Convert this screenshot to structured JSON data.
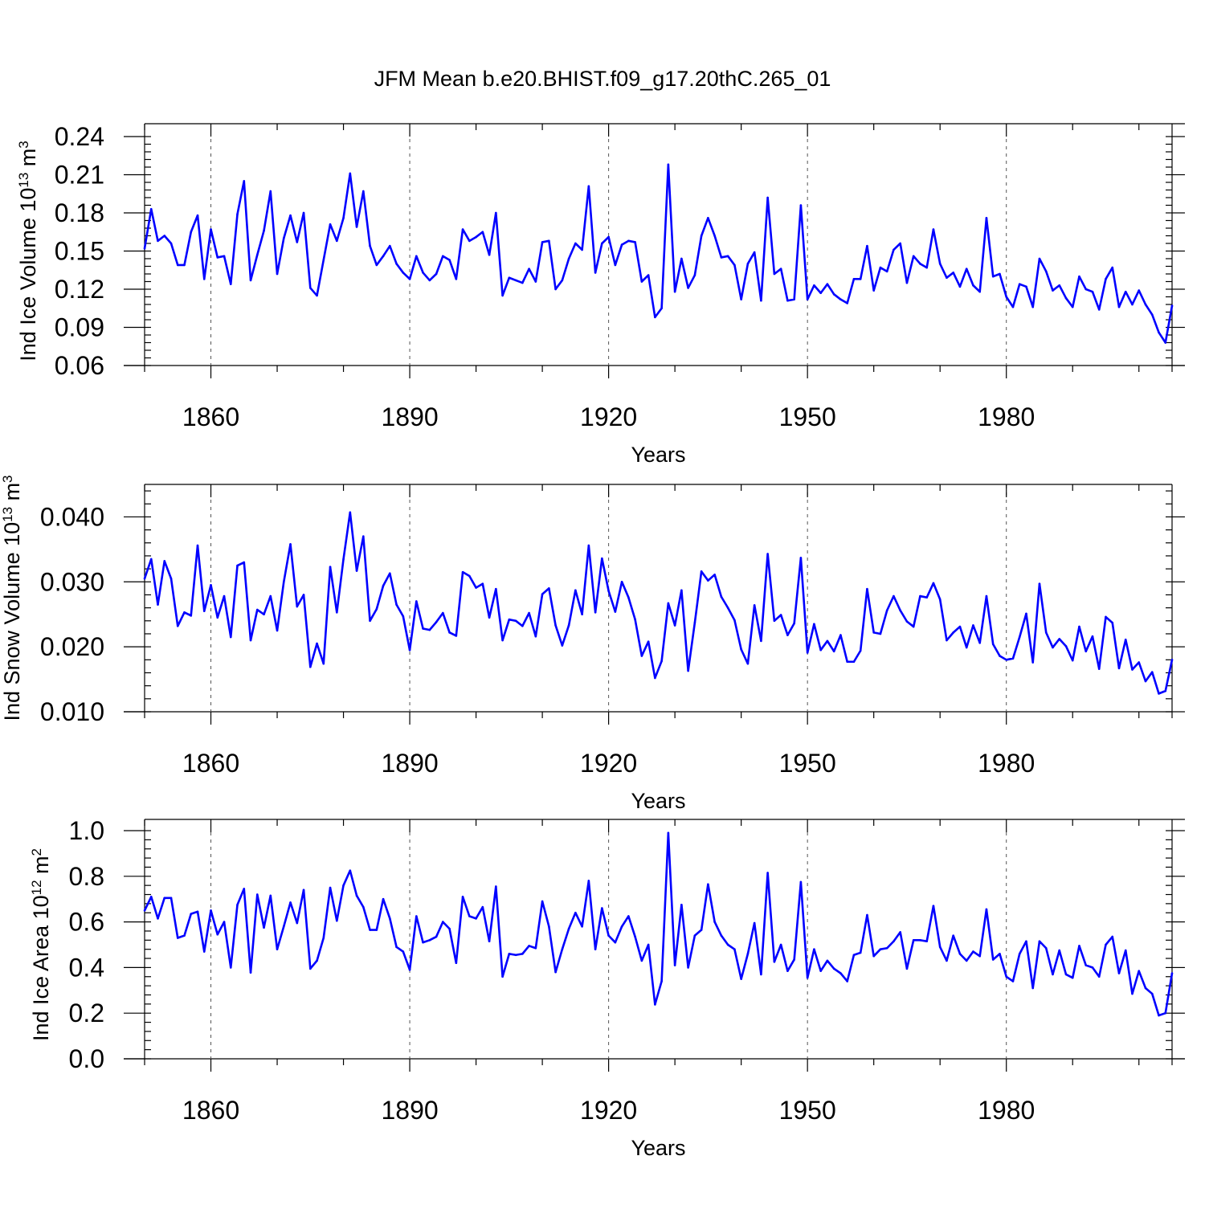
{
  "title": "JFM Mean b.e20.BHIST.f09_g17.20thC.265_01",
  "line_color": "#0000ff",
  "chart_data": [
    {
      "type": "line",
      "name": "ice-volume",
      "ylabel_prefix": "Ind Ice Volume 10",
      "ylabel_exp": "13",
      "ylabel_unit": " m",
      "ylabel_unit_exp": "3",
      "xlabel": "Years",
      "xlim": [
        1850,
        2005
      ],
      "ylim": [
        0.06,
        0.24
      ],
      "x_ticks": [
        1860,
        1890,
        1920,
        1950,
        1980
      ],
      "x_tick_labels": [
        "1860",
        "1890",
        "1920",
        "1950",
        "1980"
      ],
      "y_ticks": [
        0.06,
        0.09,
        0.12,
        0.15,
        0.18,
        0.21,
        0.24
      ],
      "y_tick_labels": [
        "0.06",
        "0.09",
        "0.12",
        "0.15",
        "0.18",
        "0.21",
        "0.24"
      ],
      "y_minor_step": 0.006,
      "x": [
        1850,
        1851,
        1852,
        1853,
        1854,
        1855,
        1856,
        1857,
        1858,
        1859,
        1860,
        1861,
        1862,
        1863,
        1864,
        1865,
        1866,
        1867,
        1868,
        1869,
        1870,
        1871,
        1872,
        1873,
        1874,
        1875,
        1876,
        1877,
        1878,
        1879,
        1880,
        1881,
        1882,
        1883,
        1884,
        1885,
        1886,
        1887,
        1888,
        1889,
        1890,
        1891,
        1892,
        1893,
        1894,
        1895,
        1896,
        1897,
        1898,
        1899,
        1900,
        1901,
        1902,
        1903,
        1904,
        1905,
        1906,
        1907,
        1908,
        1909,
        1910,
        1911,
        1912,
        1913,
        1914,
        1915,
        1916,
        1917,
        1918,
        1919,
        1920,
        1921,
        1922,
        1923,
        1924,
        1925,
        1926,
        1927,
        1928,
        1929,
        1930,
        1931,
        1932,
        1933,
        1934,
        1935,
        1936,
        1937,
        1938,
        1939,
        1940,
        1941,
        1942,
        1943,
        1944,
        1945,
        1946,
        1947,
        1948,
        1949,
        1950,
        1951,
        1952,
        1953,
        1954,
        1955,
        1956,
        1957,
        1958,
        1959,
        1960,
        1961,
        1962,
        1963,
        1964,
        1965,
        1966,
        1967,
        1968,
        1969,
        1970,
        1971,
        1972,
        1973,
        1974,
        1975,
        1976,
        1977,
        1978,
        1979,
        1980,
        1981,
        1982,
        1983,
        1984,
        1985,
        1986,
        1987,
        1988,
        1989,
        1990,
        1991,
        1992,
        1993,
        1994,
        1995,
        1996,
        1997,
        1998,
        1999,
        2000,
        2001,
        2002,
        2003,
        2004,
        2005
      ],
      "values": [
        0.152,
        0.183,
        0.158,
        0.162,
        0.156,
        0.139,
        0.139,
        0.165,
        0.178,
        0.128,
        0.167,
        0.145,
        0.146,
        0.124,
        0.179,
        0.205,
        0.127,
        0.147,
        0.166,
        0.197,
        0.132,
        0.16,
        0.178,
        0.157,
        0.18,
        0.121,
        0.115,
        0.143,
        0.171,
        0.158,
        0.176,
        0.211,
        0.169,
        0.197,
        0.154,
        0.139,
        0.146,
        0.154,
        0.14,
        0.133,
        0.128,
        0.146,
        0.133,
        0.127,
        0.132,
        0.146,
        0.143,
        0.128,
        0.167,
        0.158,
        0.161,
        0.165,
        0.147,
        0.18,
        0.115,
        0.129,
        0.127,
        0.125,
        0.136,
        0.126,
        0.157,
        0.158,
        0.12,
        0.127,
        0.144,
        0.156,
        0.151,
        0.201,
        0.133,
        0.156,
        0.161,
        0.139,
        0.155,
        0.158,
        0.157,
        0.126,
        0.131,
        0.098,
        0.105,
        0.218,
        0.118,
        0.144,
        0.121,
        0.131,
        0.162,
        0.176,
        0.162,
        0.145,
        0.146,
        0.139,
        0.112,
        0.14,
        0.149,
        0.111,
        0.192,
        0.132,
        0.136,
        0.111,
        0.112,
        0.186,
        0.112,
        0.123,
        0.117,
        0.124,
        0.116,
        0.112,
        0.109,
        0.128,
        0.128,
        0.154,
        0.119,
        0.137,
        0.134,
        0.151,
        0.156,
        0.125,
        0.146,
        0.14,
        0.137,
        0.167,
        0.14,
        0.129,
        0.133,
        0.122,
        0.136,
        0.123,
        0.118,
        0.176,
        0.13,
        0.132,
        0.114,
        0.106,
        0.124,
        0.122,
        0.106,
        0.144,
        0.134,
        0.119,
        0.123,
        0.113,
        0.106,
        0.13,
        0.12,
        0.118,
        0.104,
        0.128,
        0.137,
        0.106,
        0.118,
        0.108,
        0.119,
        0.108,
        0.1,
        0.086,
        0.078,
        0.107
      ]
    },
    {
      "type": "line",
      "name": "snow-volume",
      "ylabel_prefix": "Ind Snow Volume 10",
      "ylabel_exp": "13",
      "ylabel_unit": " m",
      "ylabel_unit_exp": "3",
      "xlabel": "Years",
      "xlim": [
        1850,
        2005
      ],
      "ylim": [
        0.01,
        0.045
      ],
      "x_ticks": [
        1860,
        1890,
        1920,
        1950,
        1980
      ],
      "x_tick_labels": [
        "1860",
        "1890",
        "1920",
        "1950",
        "1980"
      ],
      "y_ticks": [
        0.01,
        0.02,
        0.03,
        0.04
      ],
      "y_tick_labels": [
        "0.010",
        "0.020",
        "0.030",
        "0.040"
      ],
      "y_minor_step": 0.002,
      "x": [
        1850,
        1851,
        1852,
        1853,
        1854,
        1855,
        1856,
        1857,
        1858,
        1859,
        1860,
        1861,
        1862,
        1863,
        1864,
        1865,
        1866,
        1867,
        1868,
        1869,
        1870,
        1871,
        1872,
        1873,
        1874,
        1875,
        1876,
        1877,
        1878,
        1879,
        1880,
        1881,
        1882,
        1883,
        1884,
        1885,
        1886,
        1887,
        1888,
        1889,
        1890,
        1891,
        1892,
        1893,
        1894,
        1895,
        1896,
        1897,
        1898,
        1899,
        1900,
        1901,
        1902,
        1903,
        1904,
        1905,
        1906,
        1907,
        1908,
        1909,
        1910,
        1911,
        1912,
        1913,
        1914,
        1915,
        1916,
        1917,
        1918,
        1919,
        1920,
        1921,
        1922,
        1923,
        1924,
        1925,
        1926,
        1927,
        1928,
        1929,
        1930,
        1931,
        1932,
        1933,
        1934,
        1935,
        1936,
        1937,
        1938,
        1939,
        1940,
        1941,
        1942,
        1943,
        1944,
        1945,
        1946,
        1947,
        1948,
        1949,
        1950,
        1951,
        1952,
        1953,
        1954,
        1955,
        1956,
        1957,
        1958,
        1959,
        1960,
        1961,
        1962,
        1963,
        1964,
        1965,
        1966,
        1967,
        1968,
        1969,
        1970,
        1971,
        1972,
        1973,
        1974,
        1975,
        1976,
        1977,
        1978,
        1979,
        1980,
        1981,
        1982,
        1983,
        1984,
        1985,
        1986,
        1987,
        1988,
        1989,
        1990,
        1991,
        1992,
        1993,
        1994,
        1995,
        1996,
        1997,
        1998,
        1999,
        2000,
        2001,
        2002,
        2003,
        2004,
        2005
      ],
      "values": [
        0.0305,
        0.0335,
        0.0265,
        0.0332,
        0.0305,
        0.0232,
        0.0253,
        0.0248,
        0.0356,
        0.0255,
        0.0295,
        0.0245,
        0.0278,
        0.0215,
        0.0325,
        0.033,
        0.021,
        0.0257,
        0.025,
        0.0278,
        0.0225,
        0.03,
        0.0358,
        0.0262,
        0.028,
        0.0169,
        0.0205,
        0.0174,
        0.0323,
        0.0253,
        0.0335,
        0.0407,
        0.0317,
        0.037,
        0.024,
        0.0258,
        0.0294,
        0.0313,
        0.0265,
        0.0247,
        0.0195,
        0.027,
        0.0228,
        0.0226,
        0.0238,
        0.0252,
        0.0222,
        0.0217,
        0.0315,
        0.0309,
        0.0291,
        0.0297,
        0.0245,
        0.0289,
        0.021,
        0.0242,
        0.024,
        0.0232,
        0.0252,
        0.0216,
        0.0281,
        0.029,
        0.0233,
        0.0202,
        0.0233,
        0.0287,
        0.025,
        0.0356,
        0.0253,
        0.0336,
        0.0286,
        0.0254,
        0.03,
        0.0276,
        0.0242,
        0.0186,
        0.0208,
        0.0152,
        0.0178,
        0.0267,
        0.0233,
        0.0287,
        0.0163,
        0.0237,
        0.0316,
        0.0302,
        0.0311,
        0.0277,
        0.026,
        0.0241,
        0.0196,
        0.0174,
        0.0264,
        0.0209,
        0.0343,
        0.024,
        0.0249,
        0.0218,
        0.0236,
        0.0337,
        0.0191,
        0.0235,
        0.0195,
        0.0209,
        0.0193,
        0.0218,
        0.0177,
        0.0177,
        0.0194,
        0.0289,
        0.0222,
        0.022,
        0.0256,
        0.0278,
        0.0256,
        0.0239,
        0.0231,
        0.0278,
        0.0276,
        0.0298,
        0.0273,
        0.021,
        0.0222,
        0.0231,
        0.0199,
        0.0233,
        0.0206,
        0.0278,
        0.0204,
        0.0186,
        0.018,
        0.0182,
        0.0215,
        0.0251,
        0.0176,
        0.0297,
        0.0222,
        0.0199,
        0.0212,
        0.0201,
        0.0179,
        0.0231,
        0.0193,
        0.0216,
        0.0166,
        0.0246,
        0.0237,
        0.0167,
        0.0211,
        0.0165,
        0.0176,
        0.0147,
        0.0161,
        0.0128,
        0.0132,
        0.018
      ]
    },
    {
      "type": "line",
      "name": "ice-area",
      "ylabel_prefix": "Ind Ice Area 10",
      "ylabel_exp": "12",
      "ylabel_unit": " m",
      "ylabel_unit_exp": "2",
      "xlabel": "Years",
      "xlim": [
        1850,
        2005
      ],
      "ylim": [
        0.0,
        1.0
      ],
      "x_ticks": [
        1860,
        1890,
        1920,
        1950,
        1980
      ],
      "x_tick_labels": [
        "1860",
        "1890",
        "1920",
        "1950",
        "1980"
      ],
      "y_ticks": [
        0.0,
        0.2,
        0.4,
        0.6,
        0.8,
        1.0
      ],
      "y_tick_labels": [
        "0.0",
        "0.2",
        "0.4",
        "0.6",
        "0.8",
        "1.0"
      ],
      "y_minor_step": 0.04,
      "x": [
        1850,
        1851,
        1852,
        1853,
        1854,
        1855,
        1856,
        1857,
        1858,
        1859,
        1860,
        1861,
        1862,
        1863,
        1864,
        1865,
        1866,
        1867,
        1868,
        1869,
        1870,
        1871,
        1872,
        1873,
        1874,
        1875,
        1876,
        1877,
        1878,
        1879,
        1880,
        1881,
        1882,
        1883,
        1884,
        1885,
        1886,
        1887,
        1888,
        1889,
        1890,
        1891,
        1892,
        1893,
        1894,
        1895,
        1896,
        1897,
        1898,
        1899,
        1900,
        1901,
        1902,
        1903,
        1904,
        1905,
        1906,
        1907,
        1908,
        1909,
        1910,
        1911,
        1912,
        1913,
        1914,
        1915,
        1916,
        1917,
        1918,
        1919,
        1920,
        1921,
        1922,
        1923,
        1924,
        1925,
        1926,
        1927,
        1928,
        1929,
        1930,
        1931,
        1932,
        1933,
        1934,
        1935,
        1936,
        1937,
        1938,
        1939,
        1940,
        1941,
        1942,
        1943,
        1944,
        1945,
        1946,
        1947,
        1948,
        1949,
        1950,
        1951,
        1952,
        1953,
        1954,
        1955,
        1956,
        1957,
        1958,
        1959,
        1960,
        1961,
        1962,
        1963,
        1964,
        1965,
        1966,
        1967,
        1968,
        1969,
        1970,
        1971,
        1972,
        1973,
        1974,
        1975,
        1976,
        1977,
        1978,
        1979,
        1980,
        1981,
        1982,
        1983,
        1984,
        1985,
        1986,
        1987,
        1988,
        1989,
        1990,
        1991,
        1992,
        1993,
        1994,
        1995,
        1996,
        1997,
        1998,
        1999,
        2000,
        2001,
        2002,
        2003,
        2004,
        2005
      ],
      "values": [
        0.65,
        0.71,
        0.615,
        0.705,
        0.705,
        0.53,
        0.54,
        0.635,
        0.645,
        0.47,
        0.65,
        0.545,
        0.6,
        0.4,
        0.675,
        0.745,
        0.378,
        0.72,
        0.575,
        0.715,
        0.48,
        0.58,
        0.685,
        0.595,
        0.74,
        0.395,
        0.43,
        0.53,
        0.75,
        0.605,
        0.76,
        0.825,
        0.715,
        0.665,
        0.565,
        0.565,
        0.7,
        0.615,
        0.49,
        0.47,
        0.39,
        0.625,
        0.51,
        0.52,
        0.535,
        0.6,
        0.57,
        0.42,
        0.71,
        0.625,
        0.615,
        0.665,
        0.515,
        0.755,
        0.36,
        0.46,
        0.455,
        0.46,
        0.495,
        0.485,
        0.69,
        0.58,
        0.38,
        0.48,
        0.57,
        0.64,
        0.58,
        0.78,
        0.48,
        0.66,
        0.54,
        0.51,
        0.58,
        0.625,
        0.535,
        0.43,
        0.5,
        0.238,
        0.34,
        0.99,
        0.41,
        0.675,
        0.4,
        0.54,
        0.565,
        0.765,
        0.6,
        0.54,
        0.5,
        0.48,
        0.35,
        0.46,
        0.595,
        0.37,
        0.815,
        0.425,
        0.5,
        0.385,
        0.435,
        0.775,
        0.355,
        0.48,
        0.385,
        0.43,
        0.395,
        0.375,
        0.34,
        0.455,
        0.465,
        0.63,
        0.45,
        0.48,
        0.485,
        0.515,
        0.555,
        0.395,
        0.52,
        0.52,
        0.515,
        0.67,
        0.49,
        0.43,
        0.54,
        0.46,
        0.43,
        0.47,
        0.45,
        0.655,
        0.435,
        0.46,
        0.36,
        0.34,
        0.46,
        0.515,
        0.31,
        0.515,
        0.485,
        0.37,
        0.475,
        0.37,
        0.355,
        0.495,
        0.41,
        0.4,
        0.36,
        0.5,
        0.535,
        0.375,
        0.475,
        0.285,
        0.385,
        0.31,
        0.285,
        0.19,
        0.2,
        0.375
      ]
    }
  ]
}
